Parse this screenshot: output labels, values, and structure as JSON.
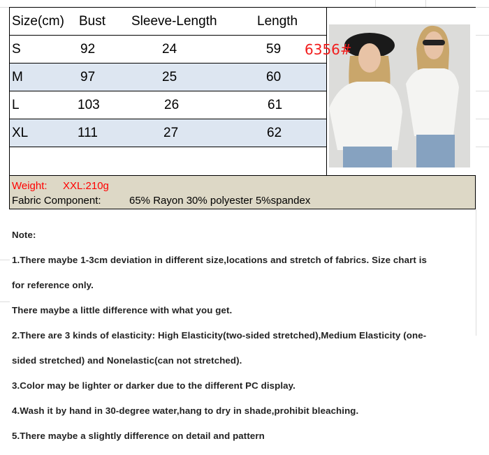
{
  "size_chart": {
    "headers": [
      "Size(cm)",
      "Bust",
      "Sleeve-Length",
      "Length"
    ],
    "rows": [
      [
        "S",
        "92",
        "24",
        "59"
      ],
      [
        "M",
        "97",
        "25",
        "60"
      ],
      [
        "L",
        "103",
        "26",
        "61"
      ],
      [
        "XL",
        "111",
        "27",
        "62"
      ]
    ],
    "alt_row_color": "#dde6f1"
  },
  "product": {
    "sku": "6356#",
    "photo": "two-models-white-lace-vneck-blouse"
  },
  "info": {
    "weight_label": "Weight:",
    "weight_value": "XXL:210g",
    "fabric_label": "Fabric Component:",
    "fabric_value": "65% Rayon 30% polyester 5%spandex"
  },
  "notes": [
    "Note:",
    "1.There maybe 1-3cm deviation in different size,locations and stretch of fabrics. Size chart is",
    "for reference only.",
    "There maybe a little difference with what you get.",
    "2.There are 3 kinds of elasticity: High Elasticity(two-sided stretched),Medium Elasticity (one-",
    "sided stretched) and Nonelastic(can not stretched).",
    "3.Color may be lighter or darker due to the different PC display.",
    "4.Wash it by hand in 30-degree water,hang to dry in shade,prohibit bleaching.",
    "5.There maybe a slightly difference on detail and pattern"
  ]
}
